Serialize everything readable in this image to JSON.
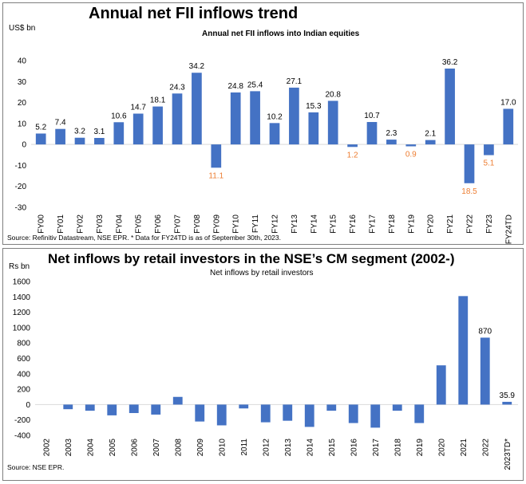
{
  "panel1": {
    "title": "Annual net FII inflows trend",
    "source": "Source: Refinitiv Datastream, NSE EPR. * Data for FY24TD is as of September 30th, 2023."
  },
  "panel2": {
    "title": "Net inflows by retail investors in the NSE’s CM segment (2002-)",
    "source": "Source: NSE EPR."
  },
  "colors": {
    "bar": "#4472c4",
    "negative_label": "#ed7d31",
    "grid": "#d9d9d9"
  },
  "chart_data": [
    {
      "type": "bar",
      "title": "Annual net FII inflows into Indian equities",
      "ylabel": "US$ bn",
      "xlabel": "",
      "ylim": [
        -30,
        40
      ],
      "yticks": [
        40,
        30,
        20,
        10,
        0,
        -10,
        -20,
        -30
      ],
      "grid": false,
      "legend": "none",
      "categories": [
        "FY00",
        "FY01",
        "FY02",
        "FY03",
        "FY04",
        "FY05",
        "FY06",
        "FY07",
        "FY08",
        "FY09",
        "FY10",
        "FY11",
        "FY12",
        "FY13",
        "FY14",
        "FY15",
        "FY16",
        "FY17",
        "FY18",
        "FY19",
        "FY20",
        "FY21",
        "FY22",
        "FY23",
        "FY24TD"
      ],
      "values": [
        5.2,
        7.4,
        3.2,
        3.1,
        10.6,
        14.7,
        18.1,
        24.3,
        34.2,
        -11.1,
        24.8,
        25.4,
        10.2,
        27.1,
        15.3,
        20.8,
        -1.2,
        10.7,
        2.3,
        -0.9,
        2.1,
        36.2,
        -18.5,
        -5.1,
        17.0
      ],
      "data_labels": [
        "5.2",
        "7.4",
        "3.2",
        "3.1",
        "10.6",
        "14.7",
        "18.1",
        "24.3",
        "34.2",
        "11.1",
        "24.8",
        "25.4",
        "10.2",
        "27.1",
        "15.3",
        "20.8",
        "1.2",
        "10.7",
        "2.3",
        "0.9",
        "2.1",
        "36.2",
        "18.5",
        "5.1",
        "17.0"
      ]
    },
    {
      "type": "bar",
      "title": "Net inflows by retail investors",
      "ylabel": "Rs bn",
      "xlabel": "",
      "ylim": [
        -400,
        1600
      ],
      "yticks": [
        1600,
        1400,
        1200,
        1000,
        800,
        600,
        400,
        200,
        0,
        -200,
        -400
      ],
      "grid": false,
      "legend": "none",
      "categories": [
        "2002",
        "2003",
        "2004",
        "2005",
        "2006",
        "2007",
        "2008",
        "2009",
        "2010",
        "2011",
        "2012",
        "2013",
        "2014",
        "2015",
        "2016",
        "2017",
        "2018",
        "2019",
        "2020",
        "2021",
        "2022",
        "2023TD*"
      ],
      "values": [
        0,
        -60,
        -80,
        -140,
        -110,
        -130,
        100,
        -220,
        -270,
        -50,
        -230,
        -210,
        -290,
        -80,
        -240,
        -300,
        -80,
        -240,
        510,
        1410,
        870,
        35.9
      ],
      "data_labels": [
        "",
        "",
        "",
        "",
        "",
        "",
        "",
        "",
        "",
        "",
        "",
        "",
        "",
        "",
        "",
        "",
        "",
        "",
        "",
        "",
        "870",
        "35.9"
      ]
    }
  ]
}
